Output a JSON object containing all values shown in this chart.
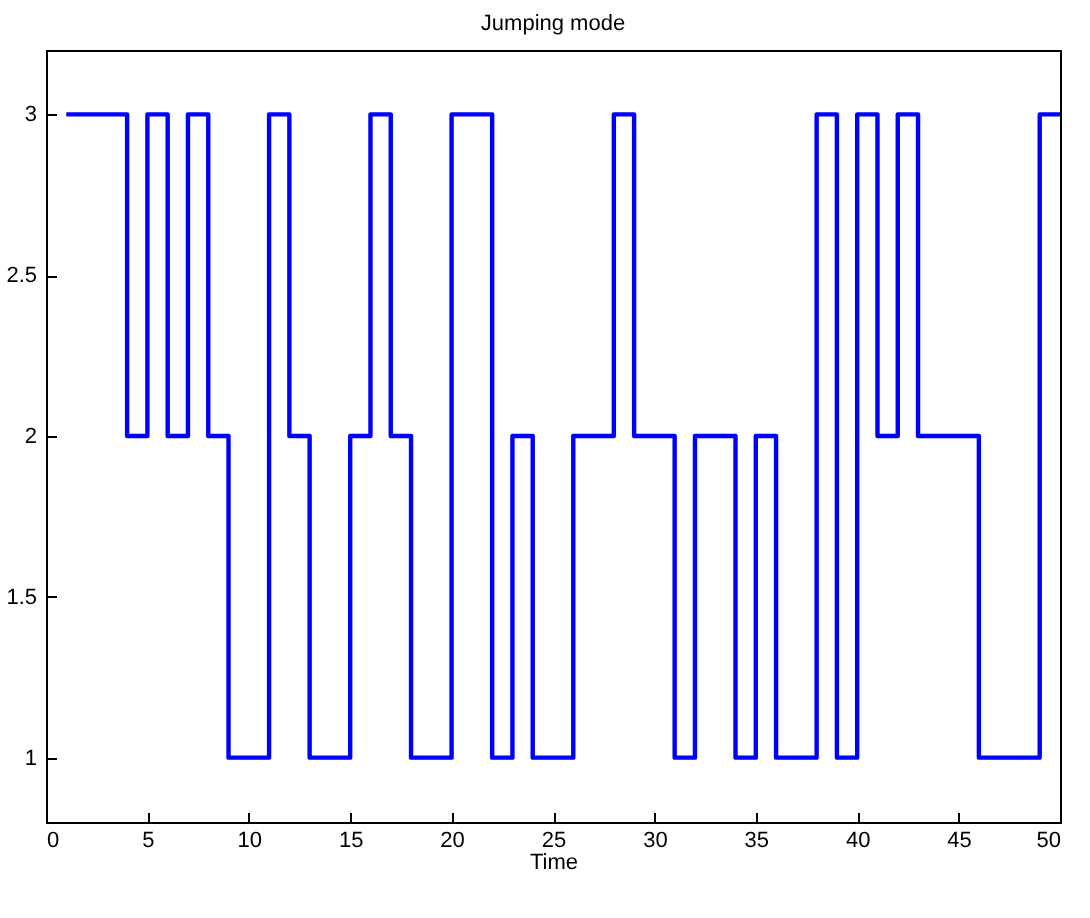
{
  "chart_data": {
    "type": "step",
    "title": "Jumping mode",
    "xlabel": "Time",
    "x": [
      1,
      2,
      3,
      4,
      5,
      6,
      7,
      8,
      9,
      10,
      11,
      12,
      13,
      14,
      15,
      16,
      17,
      18,
      19,
      20,
      21,
      22,
      23,
      24,
      25,
      26,
      27,
      28,
      29,
      30,
      31,
      32,
      33,
      34,
      35,
      36,
      37,
      38,
      39,
      40,
      41,
      42,
      43,
      44,
      45,
      46,
      47,
      48,
      49,
      50
    ],
    "series": [
      {
        "color": "#0000ff",
        "values": [
          3,
          3,
          3,
          2,
          3,
          2,
          3,
          2,
          1,
          1,
          3,
          2,
          1,
          1,
          2,
          3,
          2,
          1,
          1,
          3,
          3,
          1,
          2,
          1,
          1,
          2,
          2,
          3,
          2,
          2,
          1,
          2,
          2,
          1,
          2,
          1,
          1,
          3,
          1,
          3,
          2,
          3,
          2,
          2,
          2,
          1,
          1,
          1,
          3,
          3
        ]
      }
    ],
    "xlim": [
      0,
      50
    ],
    "xticks": [
      0,
      5,
      10,
      15,
      20,
      25,
      30,
      35,
      40,
      45,
      50
    ],
    "ylim": [
      0.8,
      3.2
    ],
    "yticks": [
      1,
      1.5,
      2,
      2.5,
      3
    ],
    "grid": false,
    "marker": "none",
    "line_style": "solid"
  }
}
